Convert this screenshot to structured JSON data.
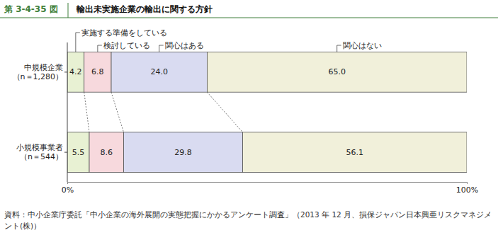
{
  "chart_data": {
    "type": "bar",
    "orientation": "horizontal",
    "stacked": true,
    "data_labels": true,
    "figure_number": "第 3-4-35 図",
    "title": "輸出未実施企業の輸出に関する方針",
    "source": "資料：中小企業庁委託「中小企業の海外展開の実態把握にかかるアンケート調査」（2013 年 12 月、損保ジャパン日本興亜リスクマネジメント(株)）",
    "categories": [
      "中規模企業\n（n＝1,280）",
      "小規模事業者\n（n＝544）"
    ],
    "xlim": [
      0,
      100
    ],
    "xticks": [
      {
        "value": 0,
        "label": "0%"
      },
      {
        "value": 100,
        "label": "100%"
      }
    ],
    "series": [
      {
        "name": "実施する準備をしている",
        "color": "#e8f1d3",
        "values": [
          4.2,
          5.5
        ],
        "value_labels": [
          "4.2",
          "5.5"
        ]
      },
      {
        "name": "検討している",
        "color": "#f7d9dd",
        "values": [
          6.8,
          8.6
        ],
        "value_labels": [
          "6.8",
          "8.6"
        ]
      },
      {
        "name": "関心はある",
        "color": "#d9dbf1",
        "values": [
          24.0,
          29.8
        ],
        "value_labels": [
          "24.0",
          "29.8"
        ]
      },
      {
        "name": "関心はない",
        "color": "#f1f0da",
        "values": [
          65.0,
          56.1
        ],
        "value_labels": [
          "65.0",
          "56.1"
        ]
      }
    ]
  }
}
